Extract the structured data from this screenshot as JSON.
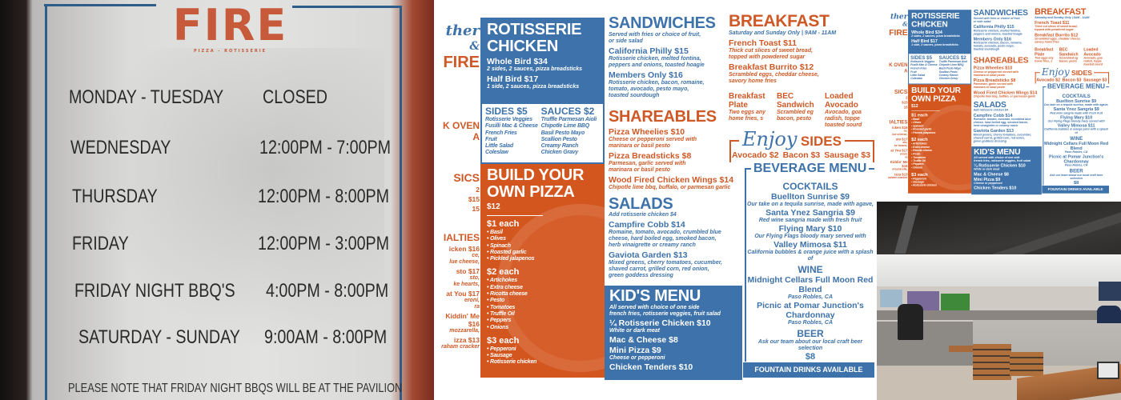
{
  "sign": {
    "logo_main": "FIRE",
    "logo_sub": "PIZZA - ROTISSERIE",
    "hours": [
      {
        "day": "MONDAY - TUESDAY",
        "time": "CLOSED"
      },
      {
        "day": "WEDNESDAY",
        "time": "12:00PM - 7:00PM"
      },
      {
        "day": "THURSDAY",
        "time": "12:00PM - 8:00PM"
      },
      {
        "day": "FRIDAY",
        "time": "12:00PM - 3:00PM"
      },
      {
        "day": "FRIDAY NIGHT BBQ'S",
        "time": "4:00PM - 8:00PM"
      },
      {
        "day": "SATURDAY - SUNDAY",
        "time": "9:00AM - 8:00PM"
      }
    ],
    "note": "PLEASE NOTE THAT FRIDAY NIGHT BBQS WILL BE AT THE PAVILION"
  },
  "menu": {
    "colors": {
      "blue": "#3d72aa",
      "orange": "#cf5926"
    },
    "logo": {
      "script": "ther",
      "amp": "&",
      "main": "FIRE"
    },
    "left": {
      "oven": [
        "K OVEN",
        "A"
      ],
      "classics": {
        "title": "SICS",
        "items": [
          "2",
          "$15",
          "15"
        ]
      },
      "specialties": {
        "title": "IALTIES",
        "items": [
          {
            "name": "icken $16",
            "desc": [
              "ce,",
              "lue cheese,"
            ]
          },
          {
            "name": "sto $17",
            "desc": [
              "sto,",
              "ke hearts,"
            ]
          },
          {
            "name": "at You $17",
            "desc": [
              "eroni,",
              "ra"
            ]
          },
          {
            "name": "Kiddin' Me $16",
            "desc": [
              "mozzarella,"
            ]
          },
          {
            "name": "izza $13",
            "desc": [
              "raham cracker"
            ]
          }
        ]
      }
    },
    "rotisserie": {
      "title": "ROTISSERIE CHICKEN",
      "items": [
        {
          "name": "Whole Bird  $34",
          "desc": [
            "2 sides, 2 sauces, pizza breadsticks"
          ]
        },
        {
          "name": "Half Bird  $17",
          "desc": [
            "1 side, 2 sauces, pizza breadsticks"
          ]
        }
      ],
      "sides": {
        "title": "SIDES  $5",
        "items": [
          "Rotisserie Veggies",
          "Fusilli Mac & Cheese",
          "French Fries",
          "Fruit",
          "Little Salad",
          "Coleslaw"
        ]
      },
      "sauces": {
        "title": "SAUCES  $2",
        "items": [
          "Truffle Parmesan Aioli",
          "Chipotle Lime BBQ",
          "Basil Pesto Mayo",
          "Scallion Pesto",
          "Creamy Ranch",
          "Chicken Gravy"
        ]
      }
    },
    "pizza": {
      "title": "BUILD YOUR OWN PIZZA",
      "price": "$12",
      "tiers": [
        {
          "label": "$1 each",
          "items": [
            "Basil",
            "Olives",
            "Spinach",
            "Roasted garlic",
            "Pickled jalapenos"
          ]
        },
        {
          "label": "$2 each",
          "items": [
            "Artichokes",
            "Extra cheese",
            "Ricotta cheese",
            "Pesto",
            "Tomatoes",
            "Truffle Oil",
            "Peppers",
            "Onions"
          ]
        },
        {
          "label": "$3 each",
          "items": [
            "Pepperoni",
            "Sausage",
            "Rotisserie chicken"
          ]
        }
      ]
    },
    "sandwiches": {
      "title": "SANDWICHES",
      "subtitle": [
        "Served with fries or choice of fruit,",
        "or side salad"
      ],
      "items": [
        {
          "name": "California Philly  $15",
          "desc": [
            "Rotisserie chicken, melted fontina,",
            "peppers and onions, toasted hoagie"
          ]
        },
        {
          "name": "Members Only  $16",
          "desc": [
            "Rotisserie chicken, bacon, romaine,",
            "tomato, avocado, pesto mayo,",
            "toasted sourdough"
          ]
        }
      ]
    },
    "shareables": {
      "title": "SHAREABLES",
      "items": [
        {
          "name": "Pizza Wheelies  $10",
          "desc": [
            "Cheese or pepperoni served with",
            "marinara or basil pesto"
          ]
        },
        {
          "name": "Pizza Breadsticks  $8",
          "desc": [
            "Parmesan, garlic served with",
            "marinara or basil pesto"
          ]
        },
        {
          "name": "Wood Fired Chicken Wings  $14",
          "desc": [
            "Chipotle lime bbq, buffalo, or parmesan garlic"
          ]
        }
      ]
    },
    "salads": {
      "title": "SALADS",
      "subtitle": "Add rotisserie chicken  $4",
      "items": [
        {
          "name": "Campfire Cobb  $14",
          "desc": [
            "Romaine, tomato, avocado, crumbled blue",
            "cheese, hard boiled egg, smoked bacon,",
            "herb vinaigrette or creamy ranch"
          ]
        },
        {
          "name": "Gaviota Garden  $13",
          "desc": [
            "Mixed greens, cherry tomatoes, cucumber,",
            "shaved carrot, grilled corn, red onion,",
            "green goddess dressing"
          ]
        }
      ]
    },
    "kids": {
      "title": "KID'S MENU",
      "subtitle": [
        "All served with choice of one side",
        "french fries, rotisserie veggies, fruit salad"
      ],
      "items": [
        {
          "name": "¼ Rotisserie Chicken  $10",
          "desc": [
            "White or dark meat"
          ]
        },
        {
          "name": "Mac & Cheese  $8",
          "desc": []
        },
        {
          "name": "Mini Pizza  $9",
          "desc": [
            "Cheese or pepperoni"
          ]
        },
        {
          "name": "Chicken Tenders  $10",
          "desc": []
        }
      ]
    },
    "breakfast": {
      "title": "BREAKFAST",
      "subtitle": "Saturday and Sunday Only  |  9AM - 11AM",
      "items": [
        {
          "name": "French Toast  $11",
          "desc": [
            "Thick cut slices of sweet bread,",
            "topped with powdered sugar"
          ]
        },
        {
          "name": "Breakfast Burrito  $12",
          "desc": [
            "Scrambled eggs, cheddar cheese,",
            "savory home fries"
          ]
        }
      ],
      "items2": [
        {
          "name": "Breakfast Plate",
          "desc": [
            "Two eggs any",
            "home fries, s"
          ]
        },
        {
          "name": "BEC Sandwich",
          "desc": [
            "Scrambled eg",
            "bacon, pesto"
          ]
        },
        {
          "name": "Loaded Avocado",
          "desc": [
            "Avocado, goa",
            "radish, toppe",
            "toasted sourd"
          ]
        }
      ]
    },
    "sides": {
      "script": "Enjoy",
      "title": "SIDES",
      "items": [
        "Avocado $2",
        "Bacon $3",
        "Sausage $3"
      ]
    },
    "beverage": {
      "title": "BEVERAGE MENU",
      "cocktails": {
        "title": "COCKTAILS",
        "items": [
          {
            "name": "Buellton Sunrise  $9",
            "desc": "Our take on a tequila sunrise, made with agave,"
          },
          {
            "name": "Santa Ynez Sangria  $9",
            "desc": "Red wine sangria made with fresh fruit"
          },
          {
            "name": "Flying Mary  $10",
            "desc": "Our Flying Flags bloody mary served with"
          },
          {
            "name": "Valley Mimosa  $11",
            "desc": "California bubbles & orange juice with a splash of"
          }
        ]
      },
      "wine": {
        "title": "WINE",
        "items": [
          {
            "name": "Midnight Cellars Full Moon Red Blend",
            "desc": "Paso Robles, CA"
          },
          {
            "name": "Picnic at Pomar Junction's Chardonnay",
            "desc": "Paso Robles, CA"
          }
        ]
      },
      "beer": {
        "title": "BEER",
        "desc": "Ask our team about our local craft beer selection",
        "price": "$8"
      },
      "fountain": "FOUNTAIN DRINKS AVAILABLE"
    }
  }
}
